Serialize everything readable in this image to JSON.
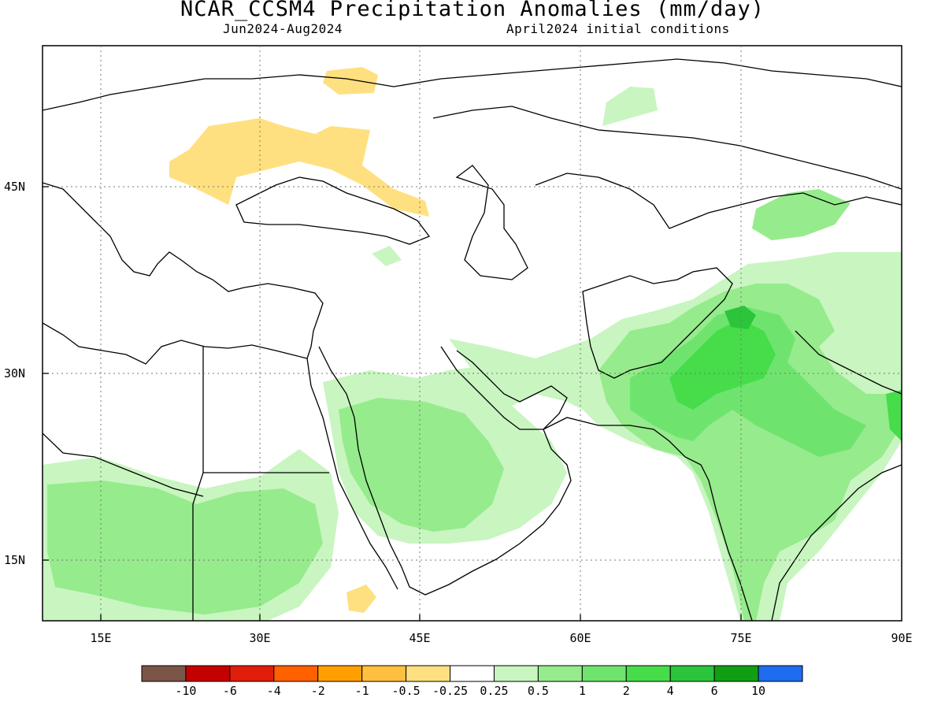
{
  "title": "NCAR_CCSM4 Precipitation Anomalies (mm/day)",
  "period": "Jun2024-Aug2024",
  "init": "April2024 initial conditions",
  "lat_labels": [
    "45N",
    "30N",
    "15N"
  ],
  "lon_labels": [
    "15E",
    "30E",
    "45E",
    "60E",
    "75E",
    "90E"
  ],
  "legend": {
    "colors": [
      "#7a5548",
      "#c40000",
      "#e01e0a",
      "#ff6000",
      "#ffa000",
      "#ffc040",
      "#ffe080",
      "#ffffff",
      "#c8f5c0",
      "#96eb8c",
      "#6ee46e",
      "#46dc4a",
      "#2cc43a",
      "#109f12",
      "#1e6cf0"
    ],
    "labels": [
      "-10",
      "-6",
      "-4",
      "-2",
      "-1",
      "-0.5",
      "-0.25",
      "0.25",
      "0.5",
      "1",
      "2",
      "4",
      "6",
      "10"
    ]
  },
  "colors": {
    "dry_light": "#ffe080",
    "dry_mid": "#ffc040",
    "dry_strong": "#ffa000",
    "dry_stronger": "#ff6000",
    "wet_light": "#c8f5c0",
    "wet_mid": "#96eb8c",
    "wet_strong": "#6ee46e",
    "wet_stronger": "#46dc4a",
    "wet_max": "#2cc43a",
    "coast": "#000000"
  }
}
